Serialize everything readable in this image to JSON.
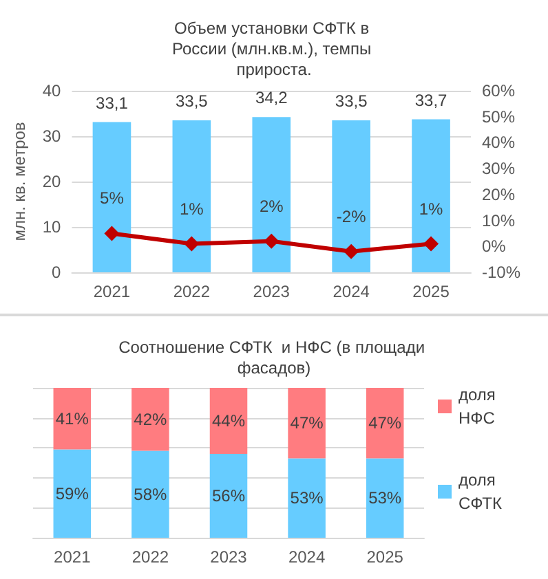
{
  "chart_data": [
    {
      "type": "bar",
      "title": "Объем установки СФТК в России (млн.кв.м.), темпы прироста.",
      "ylabel": "млн. кв. метров",
      "categories": [
        "2021",
        "2022",
        "2023",
        "2024",
        "2025"
      ],
      "series": [
        {
          "type": "bar",
          "color": "#66ccff",
          "values": [
            33.1,
            33.5,
            34.2,
            33.5,
            33.7
          ],
          "value_labels": [
            "33,1",
            "33,5",
            "34,2",
            "33,5",
            "33,7"
          ]
        },
        {
          "type": "line",
          "axis": "y2",
          "color": "#c00000",
          "values": [
            5,
            1,
            2,
            -2,
            1
          ],
          "value_labels": [
            "5%",
            "1%",
            "2%",
            "-2%",
            "1%"
          ]
        }
      ],
      "marker": "diamond",
      "ylim": [
        0,
        40
      ],
      "yticks": [
        0,
        10,
        20,
        30,
        40
      ],
      "y2lim": [
        -10,
        60
      ],
      "y2ticks": [
        {
          "value": -10,
          "label": "-10%"
        },
        {
          "value": 0,
          "label": "0%"
        },
        {
          "value": 10,
          "label": "10%"
        },
        {
          "value": 20,
          "label": "20%"
        },
        {
          "value": 30,
          "label": "30%"
        },
        {
          "value": 40,
          "label": "40%"
        },
        {
          "value": 50,
          "label": "50%"
        },
        {
          "value": 60,
          "label": "60%"
        }
      ],
      "grid": "y",
      "legend": false
    },
    {
      "type": "bar",
      "title": "Соотношение СФТК  и НФС (в площади фасадов)",
      "stacked": true,
      "categories": [
        "2021",
        "2022",
        "2023",
        "2024",
        "2025"
      ],
      "series": [
        {
          "name": "доля СФТК",
          "color": "#66ccff",
          "values": [
            59,
            58,
            56,
            53,
            53
          ],
          "value_labels": [
            "59%",
            "58%",
            "56%",
            "53%",
            "53%"
          ]
        },
        {
          "name": "доля НФС",
          "color": "#ff7c80",
          "values": [
            41,
            42,
            44,
            47,
            47
          ],
          "value_labels": [
            "41%",
            "42%",
            "44%",
            "47%",
            "47%"
          ]
        }
      ],
      "ylim": [
        0,
        100
      ],
      "yticks": [
        {
          "value": 0,
          "label": null
        },
        {
          "value": 20,
          "label": null
        },
        {
          "value": 40,
          "label": null
        },
        {
          "value": 60,
          "label": null
        },
        {
          "value": 80,
          "label": null
        },
        {
          "value": 100,
          "label": null
        }
      ],
      "grid": "y",
      "legend": "right",
      "tick_labels": "x"
    }
  ]
}
